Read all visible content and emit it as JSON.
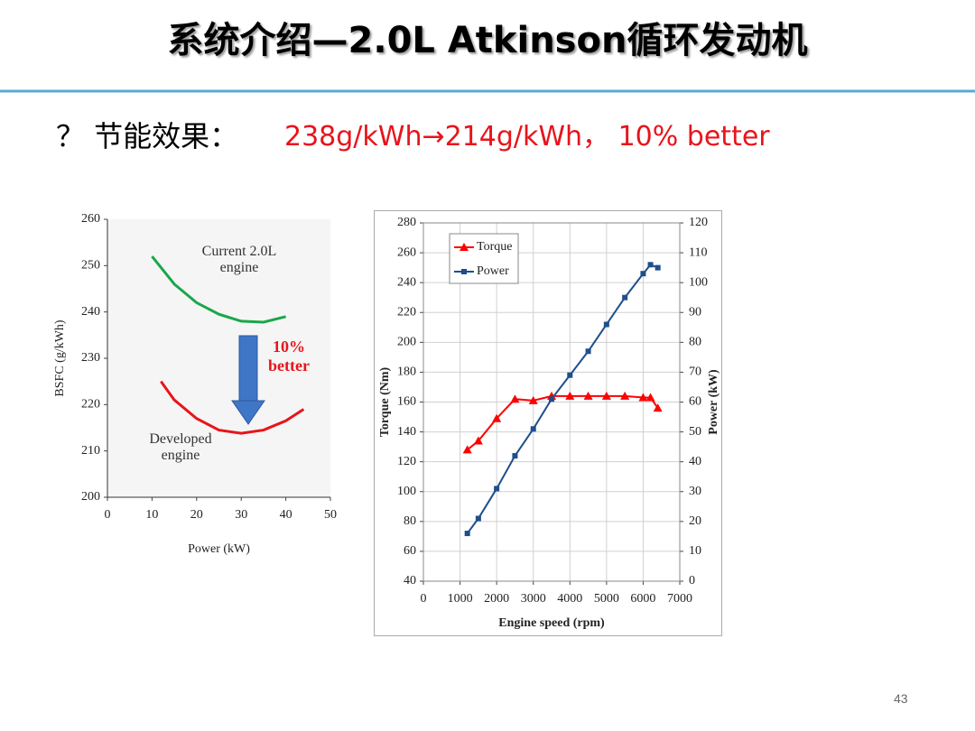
{
  "slide": {
    "title": "系统介绍—2.0L Atkinson循环发动机",
    "bullet_label": "？ 节能效果：",
    "bullet_value": "238g/kWh→214g/kWh， 10% better",
    "page_number": "43"
  },
  "chart_data": [
    {
      "type": "line",
      "x_label": "Power (kW)",
      "y_label": "BSFC (g/kWh)",
      "annotation": "10% better",
      "xlim": [
        0,
        50
      ],
      "xticks": [
        0,
        10,
        20,
        30,
        40,
        50
      ],
      "ylim": [
        200,
        260
      ],
      "yticks": [
        200,
        210,
        220,
        230,
        240,
        250,
        260
      ],
      "grid": false,
      "series": [
        {
          "name": "Current 2.0L engine",
          "color": "#1aa64a",
          "x": [
            10,
            15,
            20,
            25,
            30,
            35,
            40
          ],
          "values": [
            252,
            246,
            242,
            239.5,
            238,
            237.8,
            239
          ]
        },
        {
          "name": "Developed engine",
          "color": "#e8141b",
          "x": [
            12,
            15,
            20,
            25,
            30,
            35,
            40,
            44
          ],
          "values": [
            225,
            221,
            217,
            214.5,
            213.8,
            214.5,
            216.5,
            219
          ]
        }
      ]
    },
    {
      "type": "line",
      "x_label": "Engine speed (rpm)",
      "y_label": "Torque (Nm)",
      "y2_label": "Power (kW)",
      "xlim": [
        0,
        7000
      ],
      "xticks": [
        0,
        1000,
        2000,
        3000,
        4000,
        5000,
        6000,
        7000
      ],
      "ylim": [
        40,
        280
      ],
      "yticks": [
        40,
        60,
        80,
        100,
        120,
        140,
        160,
        180,
        200,
        220,
        240,
        260,
        280
      ],
      "y2lim": [
        0,
        120
      ],
      "y2ticks": [
        0,
        10,
        20,
        30,
        40,
        50,
        60,
        70,
        80,
        90,
        100,
        110,
        120
      ],
      "grid": true,
      "legend": "top-left",
      "series": [
        {
          "name": "Torque",
          "color": "#ff0000",
          "marker": "triangle",
          "x": [
            1200,
            1500,
            2000,
            2500,
            3000,
            3500,
            4000,
            4500,
            5000,
            5500,
            6000,
            6200,
            6400
          ],
          "values": [
            128,
            134,
            149,
            162,
            161,
            164,
            164,
            164,
            164,
            164,
            163,
            163,
            156
          ]
        },
        {
          "name": "Power",
          "color": "#1f4e8c",
          "marker": "square",
          "axis": "y2",
          "x": [
            1200,
            1500,
            2000,
            2500,
            3000,
            3500,
            4000,
            4500,
            5000,
            5500,
            6000,
            6200,
            6400
          ],
          "values": [
            16,
            21,
            31,
            42,
            51,
            61,
            69,
            77,
            86,
            95,
            103,
            106,
            105
          ]
        }
      ]
    }
  ]
}
